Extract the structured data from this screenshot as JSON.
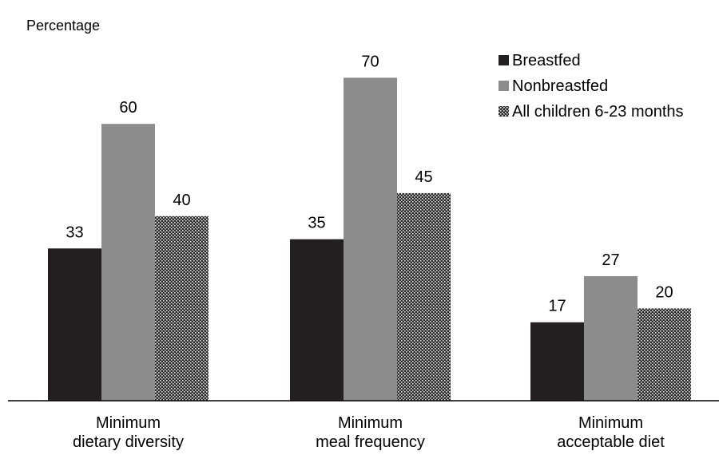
{
  "chart_data": {
    "type": "bar",
    "ylabel": "Percentage",
    "ylim": [
      0,
      80
    ],
    "grid": false,
    "legend_position": "top-right",
    "categories": [
      [
        "Minimum",
        "dietary diversity"
      ],
      [
        "Minimum",
        "meal frequency"
      ],
      [
        "Minimum",
        "acceptable diet"
      ]
    ],
    "series": [
      {
        "name": "Breastfed",
        "values": [
          33,
          35,
          17
        ],
        "color": "#231f20",
        "pattern": "solid"
      },
      {
        "name": "Nonbreastfed",
        "values": [
          60,
          70,
          27
        ],
        "color": "#8c8c8c",
        "pattern": "solid"
      },
      {
        "name": "All children 6-23 months",
        "values": [
          40,
          45,
          20
        ],
        "color": "#2a2a2a",
        "pattern": "dotted"
      }
    ]
  }
}
